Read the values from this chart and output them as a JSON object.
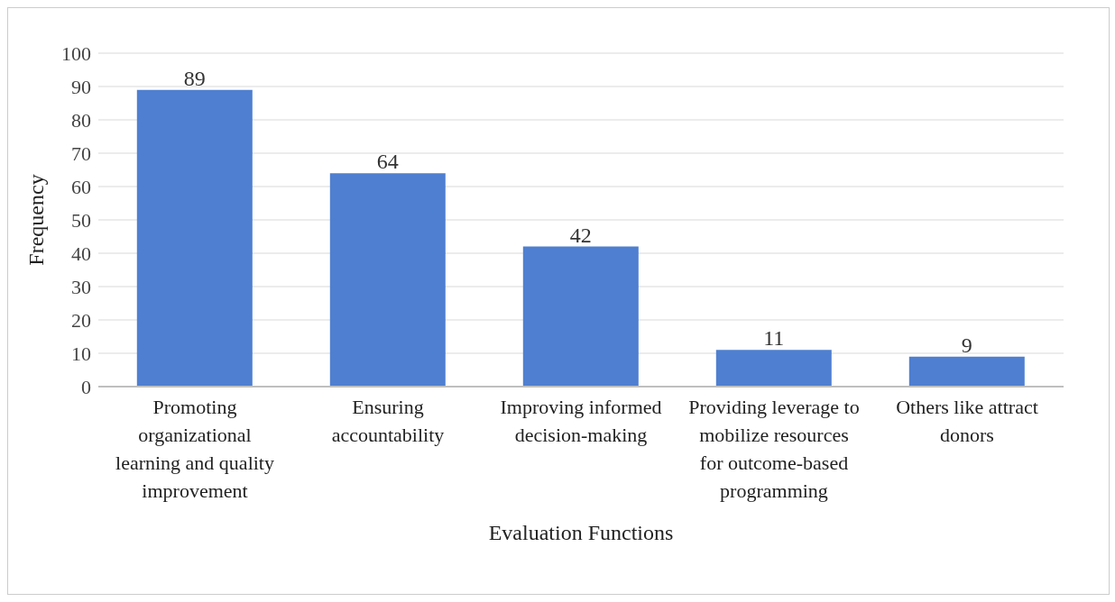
{
  "chart_data": {
    "type": "bar",
    "xlabel": "Evaluation Functions",
    "ylabel": "Frequency",
    "categories": [
      "Promoting organizational learning and quality improvement",
      "Ensuring accountability",
      "Improving informed decision-making",
      "Providing leverage to mobilize resources for outcome-based programming",
      "Others like attract donors"
    ],
    "values": [
      89,
      64,
      42,
      11,
      9
    ],
    "color": "#4f7fd0",
    "ylim": [
      0,
      100
    ],
    "yticks": [
      0,
      10,
      20,
      30,
      40,
      50,
      60,
      70,
      80,
      90,
      100
    ],
    "grid": "y",
    "data_labels": true
  }
}
